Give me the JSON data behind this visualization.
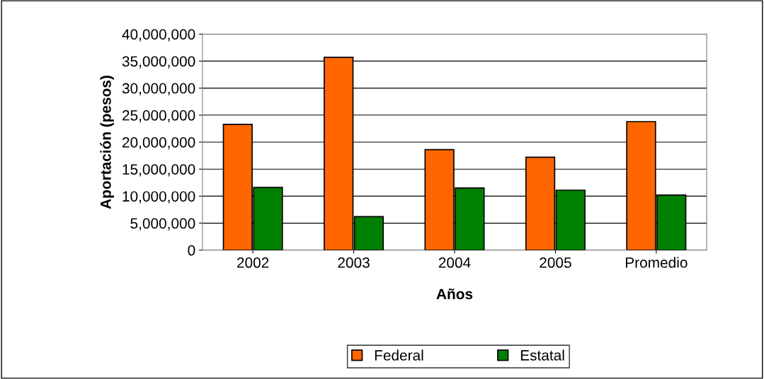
{
  "chart_data": {
    "type": "bar",
    "xlabel": "Años",
    "ylabel": "Aportación (pesos)",
    "categories": [
      "2002",
      "2003",
      "2004",
      "2005",
      "Promedio"
    ],
    "series": [
      {
        "name": "Federal",
        "color": "#ff6600",
        "values": [
          23300000,
          35700000,
          18600000,
          17200000,
          23800000
        ]
      },
      {
        "name": "Estatal",
        "color": "#008000",
        "values": [
          11600000,
          6200000,
          11500000,
          11100000,
          10200000
        ]
      }
    ],
    "ylim": [
      0,
      40000000
    ],
    "yticks": [
      {
        "value": 0,
        "label": "0"
      },
      {
        "value": 5000000,
        "label": "5,000,000"
      },
      {
        "value": 10000000,
        "label": "10,000,000"
      },
      {
        "value": 15000000,
        "label": "15,000,000"
      },
      {
        "value": 20000000,
        "label": "20,000,000"
      },
      {
        "value": 25000000,
        "label": "25,000,000"
      },
      {
        "value": 30000000,
        "label": "30,000,000"
      },
      {
        "value": 35000000,
        "label": "35,000,000"
      },
      {
        "value": 40000000,
        "label": "40,000,000"
      }
    ],
    "grid": "y",
    "legend": "bottom"
  }
}
